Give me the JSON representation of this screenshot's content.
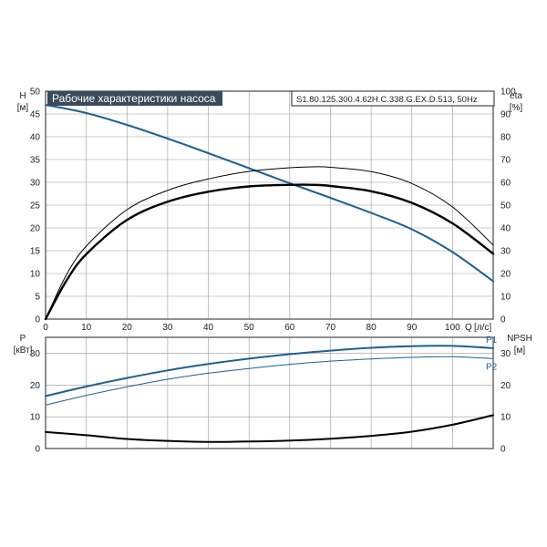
{
  "colors": {
    "grid": "#9a9a9a",
    "frame": "#222222",
    "title_bg": "#3a4a5a",
    "title_text": "#ffffff",
    "blue": "#1f5f93",
    "black": "#000000"
  },
  "header": {
    "title": "Рабочие характеристики насоса",
    "model": "S1.80.125.300.4.62H.C.338.G.EX.D.513, 50Hz"
  },
  "chart_data": [
    {
      "type": "line",
      "title": "Рабочие характеристики насоса",
      "xlabel": "Q [л/с]",
      "x_label_text": "Q",
      "x_unit": "[л/с]",
      "ylabel_left": "H",
      "ylabel_left_unit": "[м]",
      "ylabel_right": "eta",
      "ylabel_right_unit": "[%]",
      "xlim": [
        0,
        110
      ],
      "ylim_left": [
        0,
        50
      ],
      "ylim_right": [
        0,
        100
      ],
      "x_ticks": [
        0,
        10,
        20,
        30,
        40,
        50,
        60,
        70,
        80,
        90,
        100
      ],
      "y_ticks_left": [
        0,
        5,
        10,
        15,
        20,
        25,
        30,
        35,
        40,
        45,
        50
      ],
      "y_ticks_right": [
        0,
        10,
        20,
        30,
        40,
        50,
        60,
        70,
        80,
        90,
        100
      ],
      "grid": true,
      "series": [
        {
          "name": "",
          "axis": "left",
          "color_key": "blue",
          "width": 2,
          "x": [
            0,
            10,
            20,
            30,
            40,
            50,
            60,
            70,
            80,
            90,
            100,
            110
          ],
          "values": [
            47,
            45.2,
            42.6,
            39.6,
            36.4,
            33.1,
            29.8,
            26.6,
            23.3,
            19.7,
            14.7,
            8.3
          ]
        },
        {
          "name": "",
          "axis": "right",
          "color_key": "black",
          "width": 1,
          "x": [
            0,
            5,
            10,
            20,
            30,
            40,
            50,
            60,
            66,
            70,
            80,
            90,
            100,
            110
          ],
          "values": [
            0,
            19,
            32,
            48,
            56.5,
            61.5,
            64.8,
            66.4,
            66.8,
            66.6,
            64.7,
            59.5,
            49.2,
            32.5
          ]
        },
        {
          "name": "",
          "axis": "right",
          "color_key": "black",
          "width": 2.4,
          "x": [
            0,
            5,
            10,
            20,
            30,
            40,
            50,
            60,
            66,
            70,
            80,
            90,
            100,
            110
          ],
          "values": [
            0,
            16.5,
            28.5,
            43.5,
            51.5,
            55.9,
            58.2,
            58.9,
            58.9,
            58.4,
            56.1,
            51,
            42,
            28.7
          ]
        }
      ]
    },
    {
      "type": "line",
      "ylabel_left": "P",
      "ylabel_left_unit": "[кВт]",
      "ylabel_right": "NPSH",
      "ylabel_right_unit": "[м]",
      "xlim": [
        0,
        110
      ],
      "ylim_left": [
        0,
        35
      ],
      "ylim_right": [
        0,
        35
      ],
      "y_ticks_left": [
        0,
        10,
        20,
        30
      ],
      "y_ticks_right": [
        0,
        10,
        20,
        30
      ],
      "grid": true,
      "series": [
        {
          "name": "P1",
          "axis": "left",
          "color_key": "blue",
          "width": 2,
          "x": [
            0,
            10,
            20,
            30,
            40,
            50,
            60,
            70,
            80,
            90,
            100,
            110
          ],
          "values": [
            16.5,
            19.5,
            22.2,
            24.6,
            26.6,
            28.3,
            29.7,
            30.8,
            31.7,
            32.2,
            32.3,
            31.6
          ]
        },
        {
          "name": "P2",
          "axis": "left",
          "color_key": "blue",
          "width": 1,
          "x": [
            0,
            10,
            20,
            30,
            40,
            50,
            60,
            70,
            80,
            90,
            100,
            110
          ],
          "values": [
            13.7,
            16.7,
            19.4,
            21.8,
            23.7,
            25.2,
            26.5,
            27.5,
            28.2,
            28.7,
            28.9,
            28.3
          ]
        },
        {
          "name": "",
          "axis": "right",
          "color_key": "black",
          "width": 2,
          "x": [
            0,
            10,
            20,
            30,
            40,
            50,
            60,
            70,
            80,
            90,
            100,
            110
          ],
          "values": [
            5.2,
            4.2,
            3,
            2.4,
            2.1,
            2.2,
            2.5,
            3.1,
            4,
            5.3,
            7.5,
            10.5
          ]
        }
      ]
    }
  ]
}
